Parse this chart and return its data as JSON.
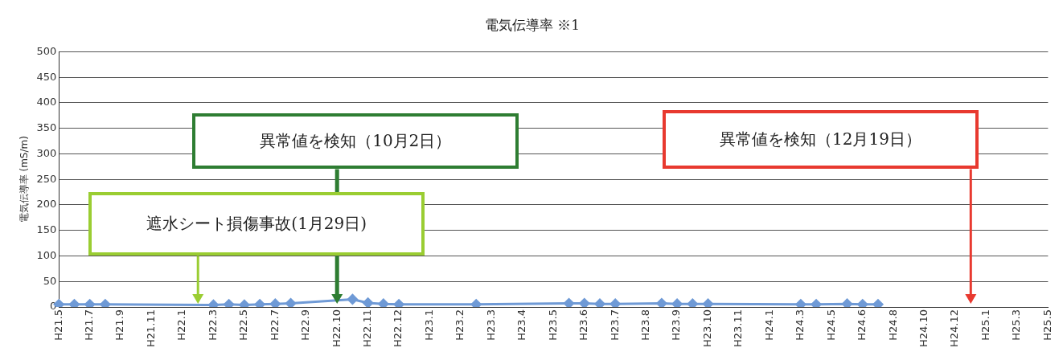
{
  "chart_data": {
    "type": "line",
    "title": "電気伝導率 ※1",
    "ylabel": "電気伝導率 (mS/m)",
    "categories": [
      "H21.5",
      null,
      "H21.7",
      null,
      "H21.9",
      null,
      "H21.11",
      null,
      "H22.1",
      null,
      "H22.3",
      null,
      "H22.5",
      null,
      "H22.7",
      null,
      "H22.9",
      null,
      "H22.10",
      null,
      "H22.11",
      null,
      "H22.12",
      null,
      "H23.1",
      null,
      "H23.2",
      null,
      "H23.3",
      null,
      "H23.4",
      null,
      "H23.5",
      null,
      "H23.6",
      null,
      "H23.7",
      null,
      "H23.8",
      null,
      "H23.9",
      null,
      "H23.10",
      null,
      "H23.11",
      null,
      "H24.1",
      null,
      "H24.3",
      null,
      "H24.5",
      null,
      "H24.6",
      null,
      "H24.8",
      null,
      "H24.10",
      null,
      "H24.12",
      null,
      "H25.1",
      null,
      "H25.3",
      null,
      "H25.5"
    ],
    "series": [
      {
        "color": "#6f9ad6",
        "values": [
          5,
          5,
          5,
          5,
          null,
          null,
          null,
          null,
          null,
          null,
          4,
          5,
          4,
          5,
          6,
          7,
          null,
          null,
          null,
          15,
          8,
          6,
          5,
          null,
          null,
          null,
          null,
          5,
          null,
          null,
          null,
          null,
          null,
          7,
          7,
          6,
          6,
          null,
          null,
          7,
          6,
          6,
          6,
          null,
          null,
          null,
          null,
          null,
          5,
          5,
          null,
          6,
          5,
          5,
          null,
          null,
          null,
          null,
          null,
          null,
          null,
          null,
          null,
          null,
          null
        ]
      }
    ],
    "ylim": [
      0,
      500
    ],
    "yticks": [
      0,
      50,
      100,
      150,
      200,
      250,
      300,
      350,
      400,
      450,
      500
    ],
    "grid": "y",
    "legend": false,
    "marker": "diamond",
    "line_style": "solid",
    "annotations": [
      "遮水シート損傷事故(1月29日)",
      "異常値を検知（10月2日）",
      "異常値を検知（12月19日）"
    ]
  }
}
